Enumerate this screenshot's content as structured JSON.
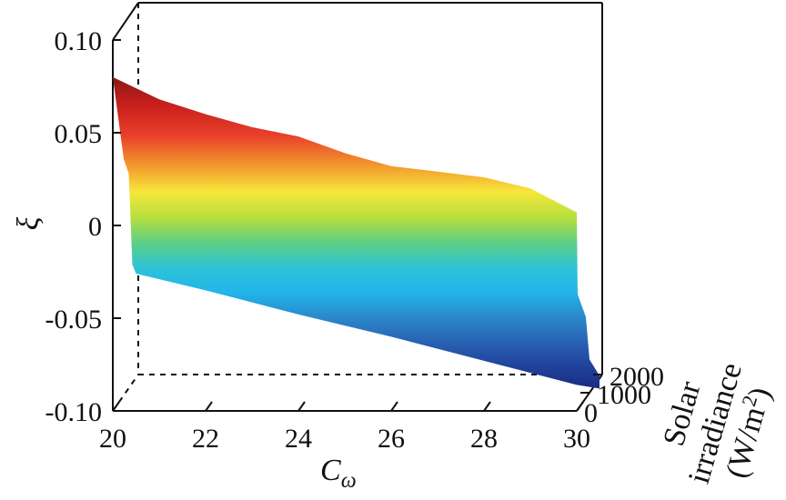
{
  "chart_data": {
    "type": "surface3d",
    "title": "",
    "xlabel_base": "C",
    "xlabel_sub": "ω",
    "ylabel": "ξ",
    "zlabel_lines": [
      "Solar",
      "irradiance",
      "(W/m",
      "2",
      ")"
    ],
    "x_range": [
      20,
      30
    ],
    "y_range": [
      -0.1,
      0.1
    ],
    "depth_range": [
      0,
      2000
    ],
    "x_ticks": [
      {
        "value": 20,
        "label": "20"
      },
      {
        "value": 22,
        "label": "22"
      },
      {
        "value": 24,
        "label": "24"
      },
      {
        "value": 26,
        "label": "26"
      },
      {
        "value": 28,
        "label": "28"
      },
      {
        "value": 30,
        "label": "30"
      }
    ],
    "y_ticks": [
      {
        "value": 0.1,
        "label": "0.10"
      },
      {
        "value": 0.05,
        "label": "0.05"
      },
      {
        "value": 0,
        "label": "0"
      },
      {
        "value": -0.05,
        "label": "-0.05"
      },
      {
        "value": -0.1,
        "label": "-0.10"
      }
    ],
    "depth_ticks": [
      {
        "value": 2000,
        "label": "2000"
      },
      {
        "value": 1000,
        "label": "1000"
      },
      {
        "value": 0,
        "label": "0"
      }
    ],
    "surface_top_edge": {
      "x": [
        20.0,
        21.0,
        22.0,
        23.0,
        24.0,
        25.0,
        26.0,
        27.0,
        28.0,
        29.0,
        30.0
      ],
      "y": [
        0.08,
        0.068,
        0.06,
        0.053,
        0.048,
        0.039,
        0.032,
        0.029,
        0.026,
        0.02,
        0.007
      ]
    },
    "surface_bottom_edge": {
      "x": [
        20.5,
        22.0,
        24.0,
        26.0,
        28.0,
        30.0
      ],
      "y": [
        -0.026,
        -0.035,
        -0.048,
        -0.06,
        -0.073,
        -0.086
      ]
    },
    "colormap": "jet",
    "grid": false
  }
}
